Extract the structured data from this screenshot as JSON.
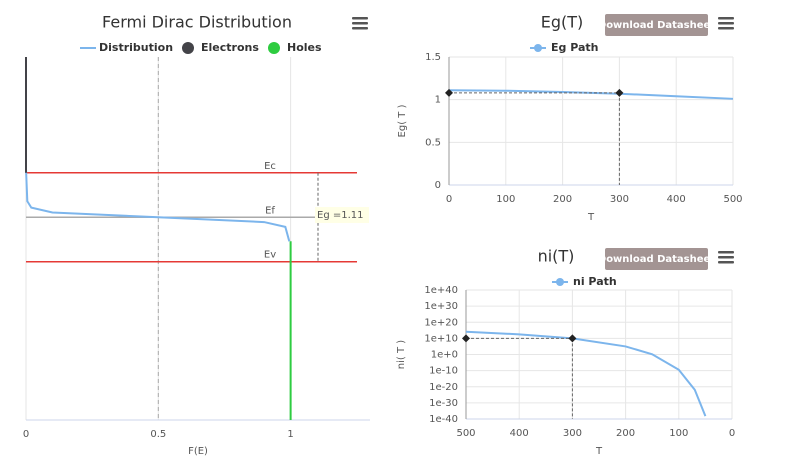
{
  "chart_data": [
    {
      "type": "line",
      "title": "Fermi Dirac Distribution",
      "x_label": "F(E)",
      "xlim": [
        0,
        1.3
      ],
      "xticks": [
        0,
        0.5,
        1
      ],
      "ylim": [
        -2.53,
        2.0
      ],
      "reference_line": 0.5,
      "series": [
        {
          "name": "Distribution",
          "color": "#7cb5ec",
          "x": [
            0,
            0.005,
            0.02,
            0.1,
            0.5,
            0.9,
            0.98,
            0.995
          ],
          "values": [
            0.6,
            0.2,
            0.12,
            0.06,
            0,
            -0.06,
            -0.12,
            -0.3
          ]
        },
        {
          "name": "Electrons",
          "color": "#434348",
          "x": [
            0,
            0
          ],
          "values": [
            2.0,
            0.555
          ]
        },
        {
          "name": "Holes",
          "color": "#2ecc40",
          "x": [
            1,
            1
          ],
          "values": [
            -0.3,
            -2.53
          ]
        }
      ],
      "levels": [
        {
          "label": "Ec",
          "value": 0.555,
          "color": "#e53935"
        },
        {
          "label": "Ef",
          "value": 0,
          "color": "#aaaaaa"
        },
        {
          "label": "Ev",
          "value": -0.555,
          "color": "#e53935"
        }
      ],
      "annotation": "Eg =1.11"
    },
    {
      "type": "line",
      "title": "Eg(T)",
      "button": "Download Datasheet",
      "x_label": "T",
      "y_label": "Eg( T )",
      "xlim": [
        0,
        500
      ],
      "xticks": [
        0,
        100,
        200,
        300,
        400,
        500
      ],
      "ylim": [
        0,
        1.5
      ],
      "yticks": [
        0,
        0.5,
        1,
        1.5
      ],
      "series": [
        {
          "name": "Eg Path",
          "color": "#7cb5ec",
          "x": [
            0,
            100,
            200,
            300,
            400,
            500
          ],
          "values": [
            1.11,
            1.105,
            1.09,
            1.07,
            1.04,
            1.01
          ]
        }
      ],
      "points": {
        "x": [
          0,
          300
        ],
        "values": [
          1.08,
          1.08
        ]
      }
    },
    {
      "type": "line",
      "title": "ni(T)",
      "button": "Download Datasheet",
      "x_label": "T",
      "y_label": "ni( T )",
      "log_y": true,
      "xlim": [
        500,
        0
      ],
      "xticks": [
        500,
        400,
        300,
        200,
        100,
        0
      ],
      "ylim": [
        1e-40,
        1e+40
      ],
      "yticks": [
        {
          "value": 1e-40,
          "label": "1e-40"
        },
        {
          "value": 1e-30,
          "label": "1e-30"
        },
        {
          "value": 1e-20,
          "label": "1e-20"
        },
        {
          "value": 1e-10,
          "label": "1e-10"
        },
        {
          "value": 1,
          "label": "1e+0"
        },
        {
          "value": 10000000000.0,
          "label": "1e+10"
        },
        {
          "value": 1e+20,
          "label": "1e+20"
        },
        {
          "value": 1e+30,
          "label": "1e+30"
        },
        {
          "value": 1e+40,
          "label": "1e+40"
        }
      ],
      "series": [
        {
          "name": "ni Path",
          "color": "#7cb5ec",
          "x": [
            500,
            400,
            300,
            200,
            150,
            100,
            70,
            50
          ],
          "values": [
            130000000000000.0,
            3200000000000.0,
            10000000000.0,
            100000.0,
            1.4,
            3.2e-10,
            1.3e-22,
            6e-39
          ]
        }
      ],
      "points": {
        "x": [
          500,
          300
        ],
        "values": [
          10000000000.0,
          10000000000.0
        ]
      }
    }
  ]
}
